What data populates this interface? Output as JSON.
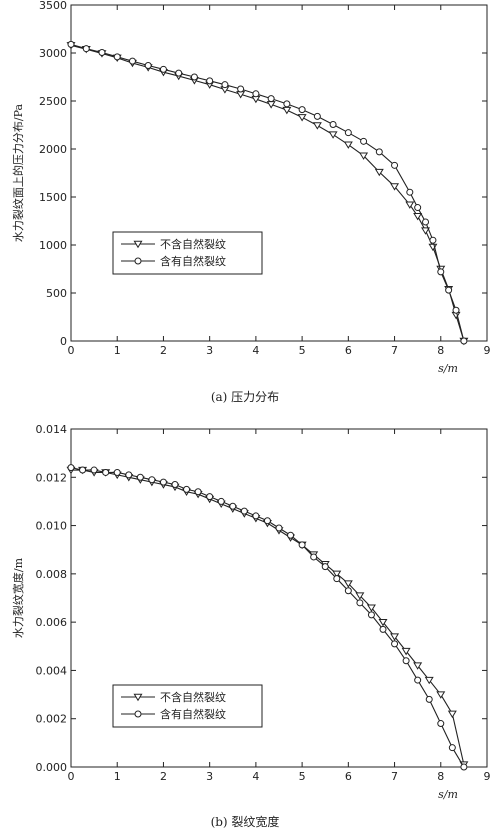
{
  "chart_data": [
    {
      "type": "line",
      "caption": "(a) 压力分布",
      "xlabel": "s/m",
      "ylabel": "水力裂纹面上的压力分布/Pa",
      "xlim": [
        0,
        9
      ],
      "ylim": [
        0,
        3500
      ],
      "xticks": [
        0,
        1,
        2,
        3,
        4,
        5,
        6,
        7,
        8,
        9
      ],
      "yticks": [
        0,
        500,
        1000,
        1500,
        2000,
        2500,
        3000,
        3500
      ],
      "ytick_labels": [
        "0",
        "500",
        "1000",
        "1500",
        "2000",
        "2500",
        "3000",
        "3500"
      ],
      "legend_position": "lower-left",
      "grid": false,
      "series": [
        {
          "name": "不含自然裂纹",
          "marker": "triangle-down",
          "x": [
            0,
            0.33,
            0.67,
            1.0,
            1.33,
            1.67,
            2.0,
            2.33,
            2.67,
            3.0,
            3.33,
            3.67,
            4.0,
            4.33,
            4.67,
            5.0,
            5.33,
            5.67,
            6.0,
            6.33,
            6.67,
            7.0,
            7.33,
            7.5,
            7.67,
            7.83,
            8.0,
            8.17,
            8.33,
            8.5
          ],
          "y": [
            3080,
            3040,
            2995,
            2950,
            2895,
            2850,
            2800,
            2760,
            2715,
            2670,
            2620,
            2570,
            2520,
            2465,
            2405,
            2330,
            2245,
            2150,
            2045,
            1930,
            1760,
            1610,
            1420,
            1300,
            1150,
            980,
            750,
            540,
            270,
            0
          ]
        },
        {
          "name": "含有自然裂纹",
          "marker": "circle",
          "x": [
            0,
            0.33,
            0.67,
            1.0,
            1.33,
            1.67,
            2.0,
            2.33,
            2.67,
            3.0,
            3.33,
            3.67,
            4.0,
            4.33,
            4.67,
            5.0,
            5.33,
            5.67,
            6.0,
            6.33,
            6.67,
            7.0,
            7.33,
            7.5,
            7.67,
            7.83,
            8.0,
            8.17,
            8.33,
            8.5
          ],
          "y": [
            3090,
            3045,
            3005,
            2960,
            2915,
            2870,
            2830,
            2790,
            2750,
            2710,
            2670,
            2625,
            2575,
            2525,
            2470,
            2410,
            2340,
            2255,
            2170,
            2080,
            1970,
            1830,
            1550,
            1390,
            1240,
            1050,
            720,
            530,
            320,
            0
          ]
        }
      ]
    },
    {
      "type": "line",
      "caption": "(b) 裂纹宽度",
      "xlabel": "s/m",
      "ylabel": "水力裂纹宽度/m",
      "xlim": [
        0,
        9
      ],
      "ylim": [
        0,
        0.014
      ],
      "xticks": [
        0,
        1,
        2,
        3,
        4,
        5,
        6,
        7,
        8,
        9
      ],
      "yticks": [
        0,
        0.002,
        0.004,
        0.006,
        0.008,
        0.01,
        0.012,
        0.014
      ],
      "ytick_labels": [
        "0.000",
        "0.002",
        "0.004",
        "0.006",
        "0.008",
        "0.010",
        "0.012",
        "0.014"
      ],
      "legend_position": "lower-left",
      "grid": false,
      "series": [
        {
          "name": "不含自然裂纹",
          "marker": "triangle-down",
          "x": [
            0,
            0.25,
            0.5,
            0.75,
            1.0,
            1.25,
            1.5,
            1.75,
            2.0,
            2.25,
            2.5,
            2.75,
            3.0,
            3.25,
            3.5,
            3.75,
            4.0,
            4.25,
            4.5,
            4.75,
            5.0,
            5.25,
            5.5,
            5.75,
            6.0,
            6.25,
            6.5,
            6.75,
            7.0,
            7.25,
            7.5,
            7.75,
            8.0,
            8.25,
            8.5
          ],
          "y": [
            0.0123,
            0.0123,
            0.0122,
            0.0122,
            0.0121,
            0.012,
            0.0119,
            0.0118,
            0.0117,
            0.0116,
            0.0114,
            0.0113,
            0.0111,
            0.0109,
            0.0107,
            0.0105,
            0.0103,
            0.0101,
            0.0098,
            0.0095,
            0.0092,
            0.0088,
            0.0084,
            0.008,
            0.0076,
            0.0071,
            0.0066,
            0.006,
            0.0054,
            0.0048,
            0.0042,
            0.0036,
            0.003,
            0.0022,
            0.0001
          ]
        },
        {
          "name": "含有自然裂纹",
          "marker": "circle",
          "x": [
            0,
            0.25,
            0.5,
            0.75,
            1.0,
            1.25,
            1.5,
            1.75,
            2.0,
            2.25,
            2.5,
            2.75,
            3.0,
            3.25,
            3.5,
            3.75,
            4.0,
            4.25,
            4.5,
            4.75,
            5.0,
            5.25,
            5.5,
            5.75,
            6.0,
            6.25,
            6.5,
            6.75,
            7.0,
            7.25,
            7.5,
            7.75,
            8.0,
            8.25,
            8.5
          ],
          "y": [
            0.0124,
            0.0123,
            0.0123,
            0.0122,
            0.0122,
            0.0121,
            0.012,
            0.0119,
            0.0118,
            0.0117,
            0.0115,
            0.0114,
            0.0112,
            0.011,
            0.0108,
            0.0106,
            0.0104,
            0.0102,
            0.0099,
            0.0096,
            0.0092,
            0.0087,
            0.0083,
            0.0078,
            0.0073,
            0.0068,
            0.0063,
            0.0057,
            0.0051,
            0.0044,
            0.0036,
            0.0028,
            0.0018,
            0.0008,
            0.0
          ]
        }
      ]
    }
  ]
}
